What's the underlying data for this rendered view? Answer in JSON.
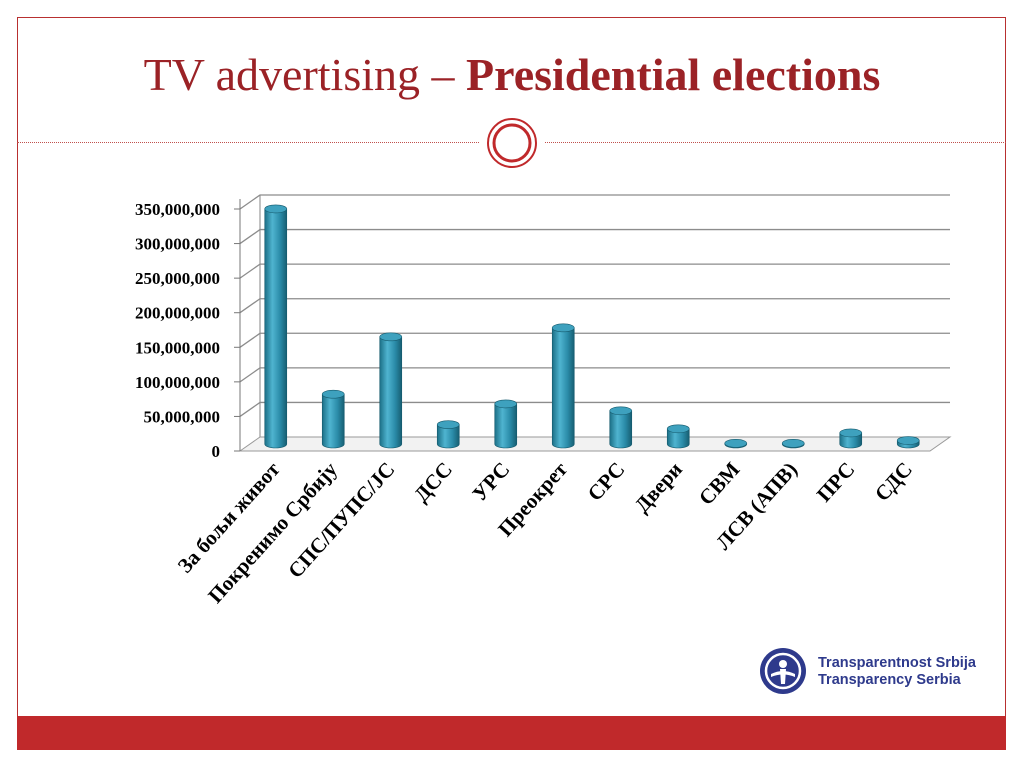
{
  "title": {
    "part1": "TV advertising – ",
    "part2": "Presidential elections"
  },
  "logo": {
    "line1": "Transparentnost Srbija",
    "line2": "Transparency Serbia"
  },
  "colors": {
    "accent": "#c0292b",
    "title": "#9b2226",
    "bar": "#2a8ba8",
    "logo": "#2e3a8c"
  },
  "chart_data": {
    "type": "bar",
    "categories": [
      "За бољи живот",
      "Покренимо Србију",
      "СПС/ПУПС/ЈС",
      "ДСС",
      "УРС",
      "Преокрет",
      "СРС",
      "Двери",
      "СВМ",
      "ЛСВ (АПВ)",
      "ПРС",
      "СДС"
    ],
    "values": [
      340000000,
      72000000,
      155000000,
      28000000,
      58000000,
      168000000,
      48000000,
      22000000,
      1000000,
      1000000,
      16000000,
      5000000
    ],
    "y_ticks": [
      "0",
      "50,000,000",
      "100,000,000",
      "150,000,000",
      "200,000,000",
      "250,000,000",
      "300,000,000",
      "350,000,000"
    ],
    "ylim": [
      0,
      350000000
    ],
    "title": "",
    "xlabel": "",
    "ylabel": "",
    "grid": true
  }
}
